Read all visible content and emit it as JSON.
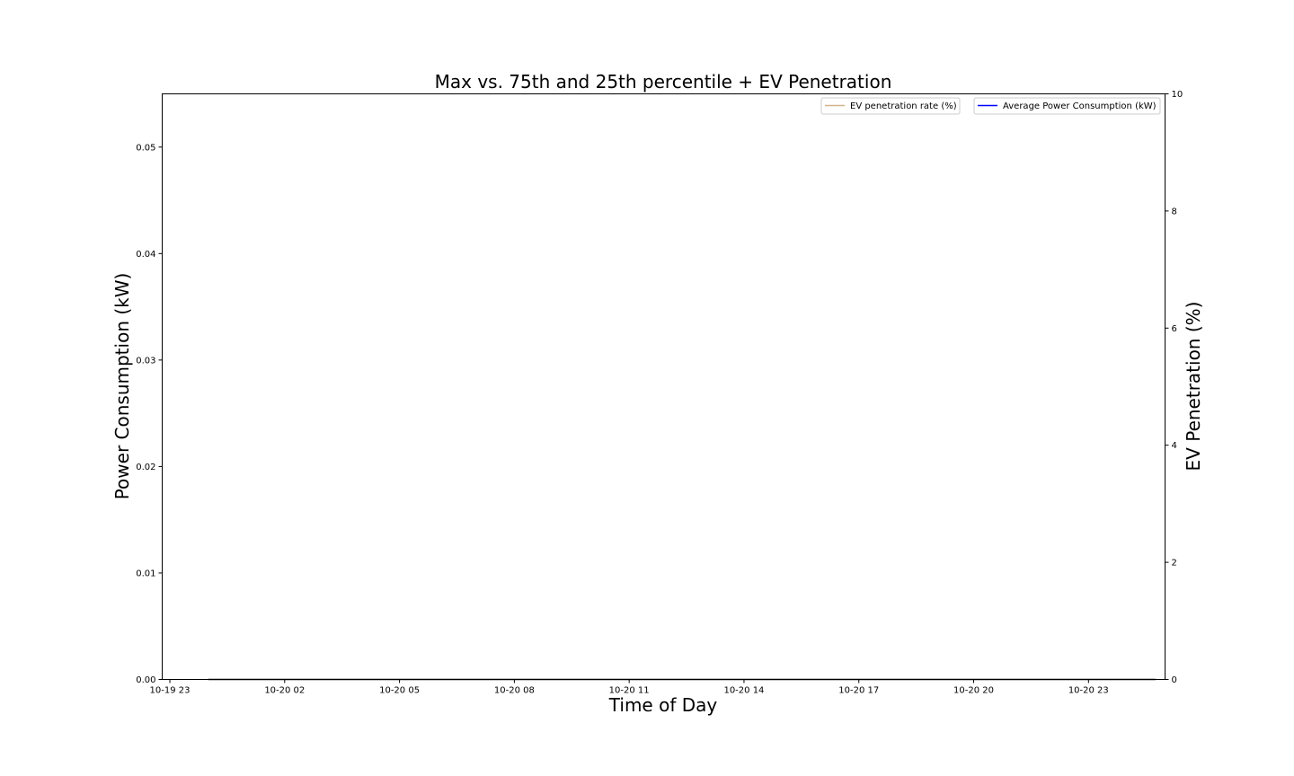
{
  "chart_data": {
    "type": "line",
    "title": "Max vs. 75th and 25th percentile + EV Penetration",
    "xlabel": "Time of Day",
    "ylabel": "Power Consumption (kW)",
    "y2label": "EV Penetration (%)",
    "x_ticks": [
      "10-19 23",
      "10-20 02",
      "10-20 05",
      "10-20 08",
      "10-20 11",
      "10-20 14",
      "10-20 17",
      "10-20 20",
      "10-20 23"
    ],
    "y_ticks": [
      "0.00",
      "0.01",
      "0.02",
      "0.03",
      "0.04",
      "0.05"
    ],
    "y2_ticks": [
      "0",
      "2",
      "4",
      "6",
      "8",
      "10"
    ],
    "xlim": [
      "10-19 22:48",
      "10-21 01:00"
    ],
    "ylim": [
      0,
      0.055
    ],
    "y2lim": [
      0,
      10
    ],
    "grid": false,
    "legend_primary": {
      "placement": "top-right",
      "label": "Average Power Consumption (kW)",
      "color": "#0000ff"
    },
    "legend_secondary": {
      "placement": "top-right",
      "label": "EV penetration rate (%)",
      "color": "#d2b48c"
    },
    "series": [
      {
        "name": "Average Power Consumption (kW)",
        "axis": "left",
        "color": "#000000",
        "x": [
          "10-20 00:00",
          "10-20 24:45"
        ],
        "values": [
          0,
          0
        ]
      }
    ]
  }
}
